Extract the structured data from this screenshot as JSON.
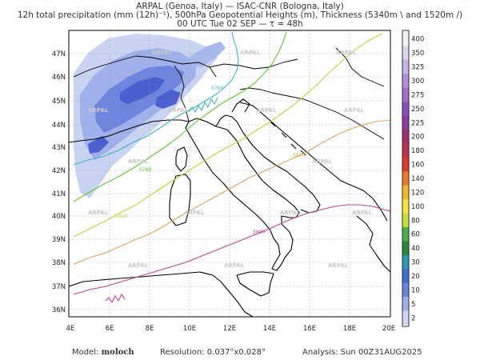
{
  "header": {
    "line1": "ARPAL (Genoa, Italy)  —  ISAC-CNR (Bologna, Italy)",
    "line2": "12h total precipitation (mm (12h)⁻¹), 500hPa Geopotential Heights (m), Thickness (5340m \\ and 1520m /)",
    "line3": "00 UTC Tue 02 SEP  —  τ = 48h"
  },
  "map": {
    "lat_labels": [
      "47N",
      "46N",
      "45N",
      "44N",
      "43N",
      "42N",
      "41N",
      "40N",
      "39N",
      "38N",
      "37N",
      "36N"
    ],
    "lon_labels": [
      "4E",
      "6E",
      "8E",
      "10E",
      "12E",
      "14E",
      "16E",
      "18E",
      "20E"
    ],
    "contour_labels": [
      "5760",
      "5790",
      "5820",
      "5850",
      "5880"
    ],
    "watermark": "ARPAL",
    "colors": {
      "contour_5760": "#3fb3c4",
      "contour_5790": "#59c72e",
      "contour_5820": "#c8cc3a",
      "contour_5850": "#d9a55a",
      "contour_5880": "#c0438a",
      "precip_light": "#b9c6ef",
      "precip_heavy": "#4b5fd1",
      "coast": "#000000"
    }
  },
  "colorbar": {
    "labels": [
      "400",
      "350",
      "325",
      "300",
      "275",
      "250",
      "225",
      "200",
      "180",
      "160",
      "140",
      "120",
      "100",
      "80",
      "60",
      "40",
      "30",
      "20",
      "10",
      "5",
      "2"
    ],
    "colors": [
      "#f2f2f2",
      "#ddd5ee",
      "#c9b3e3",
      "#b590d8",
      "#a070cc",
      "#8a52c0",
      "#8d3da0",
      "#a52f6e",
      "#c0304a",
      "#de3a2e",
      "#ef7a22",
      "#f5b82a",
      "#f6e43a",
      "#c6df3a",
      "#49b04a",
      "#2a8a3b",
      "#2a9ab0",
      "#3d6fd0",
      "#6a86de",
      "#9eb0ec",
      "#cdd6f6"
    ]
  },
  "footer": {
    "model_label": "Model:",
    "model_name": "moloch",
    "resolution": "Resolution: 0.037°x0.028°",
    "analysis": "Analysis: Sun 00Z31AUG2025"
  }
}
